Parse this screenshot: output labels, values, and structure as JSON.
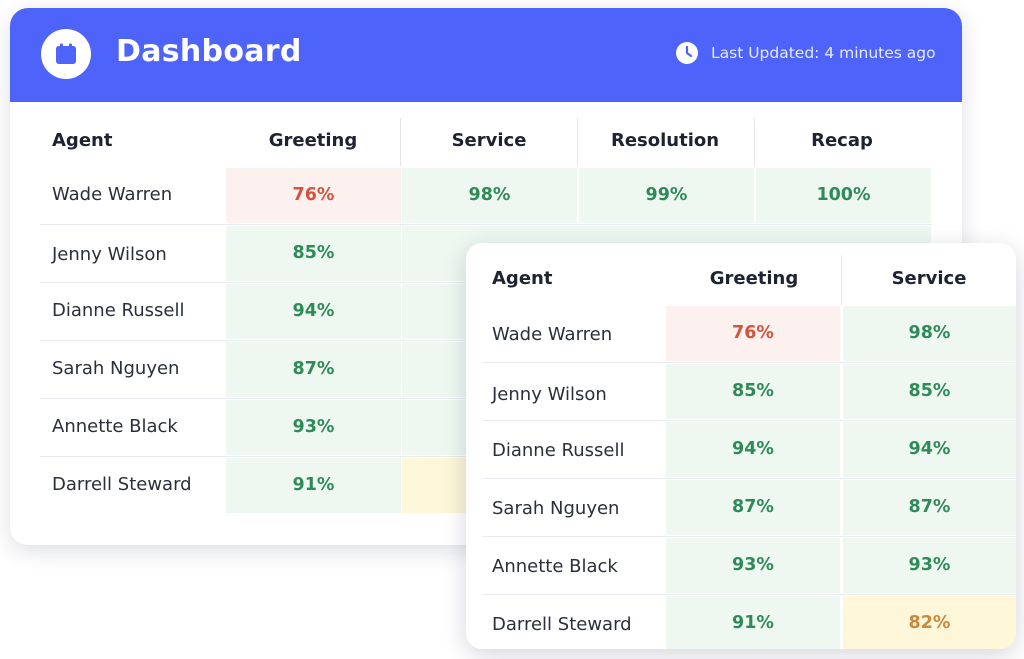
{
  "dashboard": {
    "title": "Dashboard",
    "calendar_icon": "calendar-icon",
    "clock_icon": "clock-icon",
    "last_updated": "Last Updated: 4 minutes ago",
    "brand_color": "#4e63f9",
    "columns": [
      "Agent",
      "Greeting",
      "Service",
      "Resolution",
      "Recap"
    ],
    "rows": [
      {
        "agent": "Wade Warren",
        "greeting": "76%",
        "service": "98%",
        "resolution": "99%",
        "recap": "100%"
      },
      {
        "agent": "Jenny Wilson",
        "greeting": "85%"
      },
      {
        "agent": "Dianne Russell",
        "greeting": "94%"
      },
      {
        "agent": "Sarah Nguyen",
        "greeting": "87%"
      },
      {
        "agent": "Annette Black",
        "greeting": "93%"
      },
      {
        "agent": "Darrell Steward",
        "greeting": "91%"
      }
    ]
  },
  "overlay": {
    "columns": [
      "Agent",
      "Greeting",
      "Service"
    ],
    "rows": [
      {
        "agent": "Wade Warren",
        "greeting": "76%",
        "service": "98%"
      },
      {
        "agent": "Jenny Wilson",
        "greeting": "85%",
        "service": "85%"
      },
      {
        "agent": "Dianne Russell",
        "greeting": "94%",
        "service": "94%"
      },
      {
        "agent": "Sarah Nguyen",
        "greeting": "87%",
        "service": "87%"
      },
      {
        "agent": "Annette Black",
        "greeting": "93%",
        "service": "93%"
      },
      {
        "agent": "Darrell Steward",
        "greeting": "91%",
        "service": "82%"
      }
    ]
  },
  "colors": {
    "good": "#2f8a59",
    "bad": "#d4533e",
    "warn": "#c9883c"
  }
}
